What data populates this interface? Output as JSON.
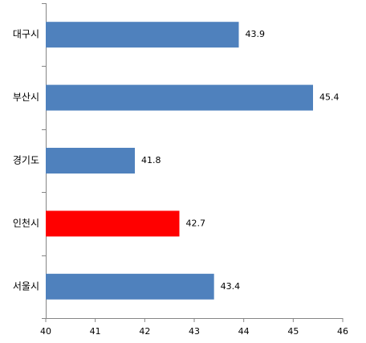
{
  "chart_data": {
    "type": "bar",
    "orientation": "horizontal",
    "categories": [
      "대구시",
      "부산시",
      "경기도",
      "인천시",
      "서울시"
    ],
    "values": [
      43.9,
      45.4,
      41.8,
      42.7,
      43.4
    ],
    "colors": [
      "#4f81bd",
      "#4f81bd",
      "#4f81bd",
      "#ff0000",
      "#4f81bd"
    ],
    "xlim": [
      40,
      46
    ],
    "xticks": [
      40,
      41,
      42,
      43,
      44,
      45,
      46
    ],
    "grid": false
  }
}
